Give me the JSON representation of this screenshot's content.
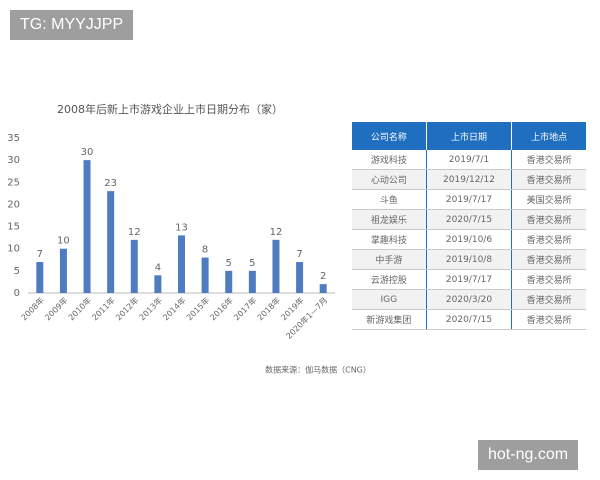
{
  "watermark_top": "TG: MYYJJPP",
  "chart_data": {
    "type": "bar",
    "title": "2008年后新上市游戏企业上市日期分布（家）",
    "categories": [
      "2008年",
      "2009年",
      "2010年",
      "2011年",
      "2012年",
      "2013年",
      "2014年",
      "2015年",
      "2016年",
      "2017年",
      "2018年",
      "2019年",
      "2020年1—7月"
    ],
    "values": [
      7,
      10,
      30,
      23,
      12,
      4,
      13,
      8,
      5,
      5,
      12,
      7,
      2
    ],
    "color": "#4f7cc0",
    "ylim": [
      0,
      35
    ],
    "yticks": [
      0,
      5,
      10,
      15,
      20,
      25,
      30,
      35
    ],
    "grid": false
  },
  "table": {
    "header": [
      "公司名称",
      "上市日期",
      "上市地点"
    ],
    "rows": [
      [
        "游戏科技",
        "2019/7/1",
        "香港交易所"
      ],
      [
        "心动公司",
        "2019/12/12",
        "香港交易所"
      ],
      [
        "斗鱼",
        "2019/7/17",
        "美国交易所"
      ],
      [
        "祖龙娱乐",
        "2020/7/15",
        "香港交易所"
      ],
      [
        "掌趣科技",
        "2019/10/6",
        "香港交易所"
      ],
      [
        "中手游",
        "2019/10/8",
        "香港交易所"
      ],
      [
        "云游控股",
        "2019/7/17",
        "香港交易所"
      ],
      [
        "IGG",
        "2020/3/20",
        "香港交易所"
      ],
      [
        "新游戏集团",
        "2020/7/15",
        "香港交易所"
      ]
    ]
  },
  "source": "数据来源：伽马数据（CNG）",
  "watermark_bottom": "hot-ng.com"
}
